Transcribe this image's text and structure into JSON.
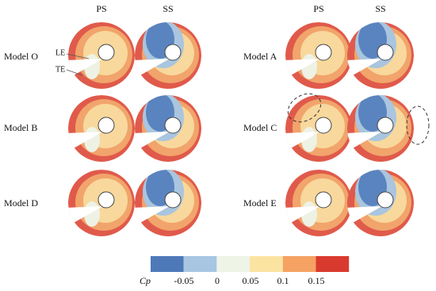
{
  "column_headers": [
    "PS",
    "SS",
    "PS",
    "SS"
  ],
  "models": [
    "Model O",
    "Model A",
    "Model B",
    "Model C",
    "Model D",
    "Model E"
  ],
  "annotations": {
    "le": "LE",
    "te": "TE"
  },
  "colorbar": {
    "variable": "Cp",
    "tick_labels": [
      "-0.05",
      "0",
      "0.05",
      "0.1",
      "0.15"
    ]
  }
}
